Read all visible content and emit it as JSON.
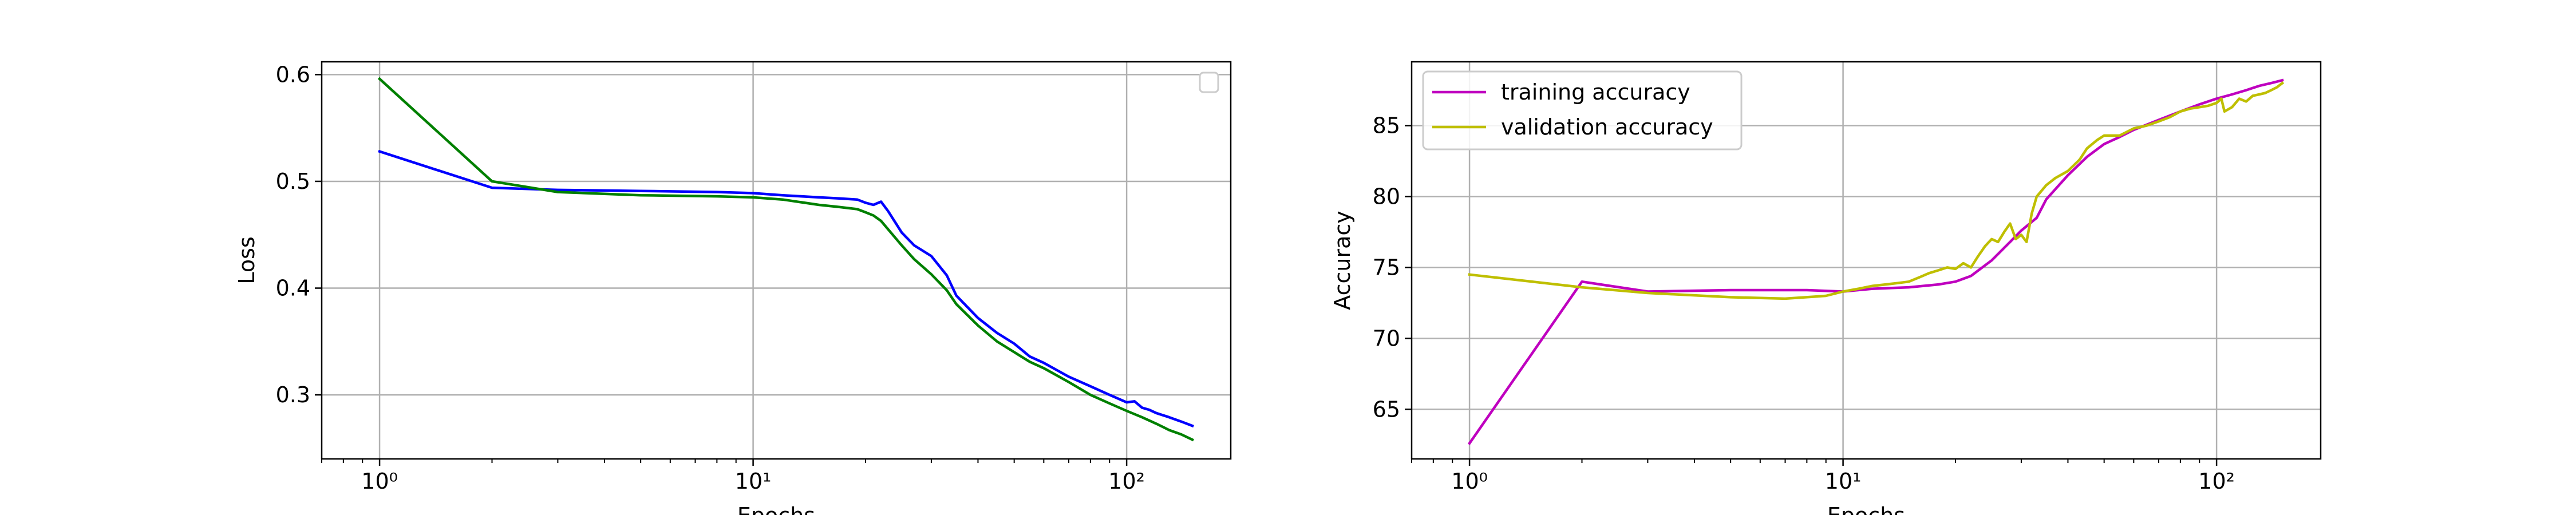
{
  "chart_data": [
    {
      "type": "line",
      "xscale": "log",
      "xlim": [
        0.7,
        190
      ],
      "ylim": [
        0.24,
        0.612
      ],
      "xticks": [
        1,
        10,
        100
      ],
      "xtick_labels": [
        "10⁰",
        "10¹",
        "10²"
      ],
      "yticks": [
        0.3,
        0.4,
        0.5,
        0.6
      ],
      "ytick_labels": [
        "0.3",
        "0.4",
        "0.5",
        "0.6"
      ],
      "xlabel": "Epochs",
      "ylabel": "Loss",
      "grid": true,
      "legend": "top-right (empty)",
      "series": [
        {
          "color": "#0000ff",
          "x": [
            1,
            2,
            3,
            5,
            8,
            10,
            12,
            15,
            17,
            19,
            20,
            21,
            22,
            23,
            25,
            27,
            30,
            33,
            35,
            40,
            45,
            50,
            55,
            60,
            70,
            80,
            90,
            100,
            105,
            110,
            115,
            120,
            130,
            140,
            150
          ],
          "y": [
            0.528,
            0.494,
            0.492,
            0.491,
            0.49,
            0.489,
            0.487,
            0.485,
            0.484,
            0.483,
            0.48,
            0.478,
            0.481,
            0.472,
            0.452,
            0.44,
            0.43,
            0.412,
            0.393,
            0.372,
            0.358,
            0.348,
            0.336,
            0.33,
            0.317,
            0.308,
            0.3,
            0.293,
            0.294,
            0.288,
            0.286,
            0.283,
            0.279,
            0.275,
            0.271
          ]
        },
        {
          "color": "#008000",
          "x": [
            1,
            2,
            3,
            5,
            8,
            10,
            12,
            15,
            17,
            19,
            20,
            21,
            22,
            23,
            25,
            27,
            30,
            33,
            35,
            40,
            45,
            50,
            55,
            60,
            70,
            80,
            90,
            100,
            110,
            120,
            130,
            140,
            150
          ],
          "y": [
            0.596,
            0.5,
            0.49,
            0.487,
            0.486,
            0.485,
            0.483,
            0.478,
            0.476,
            0.474,
            0.471,
            0.468,
            0.463,
            0.455,
            0.44,
            0.427,
            0.413,
            0.398,
            0.385,
            0.365,
            0.35,
            0.34,
            0.331,
            0.325,
            0.312,
            0.3,
            0.292,
            0.285,
            0.279,
            0.273,
            0.267,
            0.263,
            0.258
          ]
        }
      ]
    },
    {
      "type": "line",
      "xscale": "log",
      "xlim": [
        0.7,
        190
      ],
      "ylim": [
        61.5,
        89.5
      ],
      "xticks": [
        1,
        10,
        100
      ],
      "xtick_labels": [
        "10⁰",
        "10¹",
        "10²"
      ],
      "yticks": [
        65,
        70,
        75,
        80,
        85
      ],
      "ytick_labels": [
        "65",
        "70",
        "75",
        "80",
        "85"
      ],
      "xlabel": "Epochs",
      "ylabel": "Accuracy",
      "grid": true,
      "legend": "top-left",
      "series": [
        {
          "name": "training accuracy",
          "color": "#bf00bf",
          "x": [
            1,
            2,
            3,
            5,
            8,
            10,
            12,
            15,
            18,
            20,
            22,
            25,
            28,
            30,
            33,
            35,
            40,
            45,
            50,
            55,
            60,
            70,
            80,
            90,
            100,
            110,
            120,
            130,
            140,
            150
          ],
          "y": [
            62.6,
            74.0,
            73.3,
            73.4,
            73.4,
            73.3,
            73.5,
            73.6,
            73.8,
            74.0,
            74.4,
            75.5,
            76.8,
            77.6,
            78.5,
            79.8,
            81.5,
            82.8,
            83.7,
            84.2,
            84.7,
            85.4,
            86.0,
            86.5,
            86.9,
            87.2,
            87.5,
            87.8,
            88.0,
            88.2
          ]
        },
        {
          "name": "validation accuracy",
          "color": "#bfbf00",
          "x": [
            1,
            2,
            3,
            5,
            7,
            9,
            10,
            11,
            12,
            13,
            14,
            15,
            16,
            17,
            18,
            19,
            20,
            21,
            22,
            23,
            24,
            25,
            26,
            27,
            28,
            29,
            30,
            31,
            32,
            33,
            35,
            37,
            40,
            43,
            45,
            48,
            50,
            55,
            60,
            65,
            70,
            75,
            80,
            85,
            90,
            95,
            100,
            103,
            105,
            110,
            115,
            120,
            125,
            130,
            135,
            140,
            145,
            150
          ],
          "y": [
            74.5,
            73.6,
            73.2,
            72.9,
            72.8,
            73.0,
            73.3,
            73.5,
            73.7,
            73.8,
            73.9,
            74.0,
            74.3,
            74.6,
            74.8,
            75.0,
            74.9,
            75.3,
            75.0,
            75.8,
            76.5,
            77.0,
            76.8,
            77.5,
            78.1,
            77.0,
            77.3,
            76.8,
            78.8,
            80.0,
            80.8,
            81.3,
            81.8,
            82.6,
            83.4,
            84.0,
            84.3,
            84.3,
            84.8,
            85.0,
            85.3,
            85.6,
            86.0,
            86.2,
            86.3,
            86.4,
            86.6,
            86.9,
            86.0,
            86.3,
            86.9,
            86.7,
            87.1,
            87.2,
            87.3,
            87.5,
            87.7,
            88.0
          ]
        }
      ]
    }
  ]
}
